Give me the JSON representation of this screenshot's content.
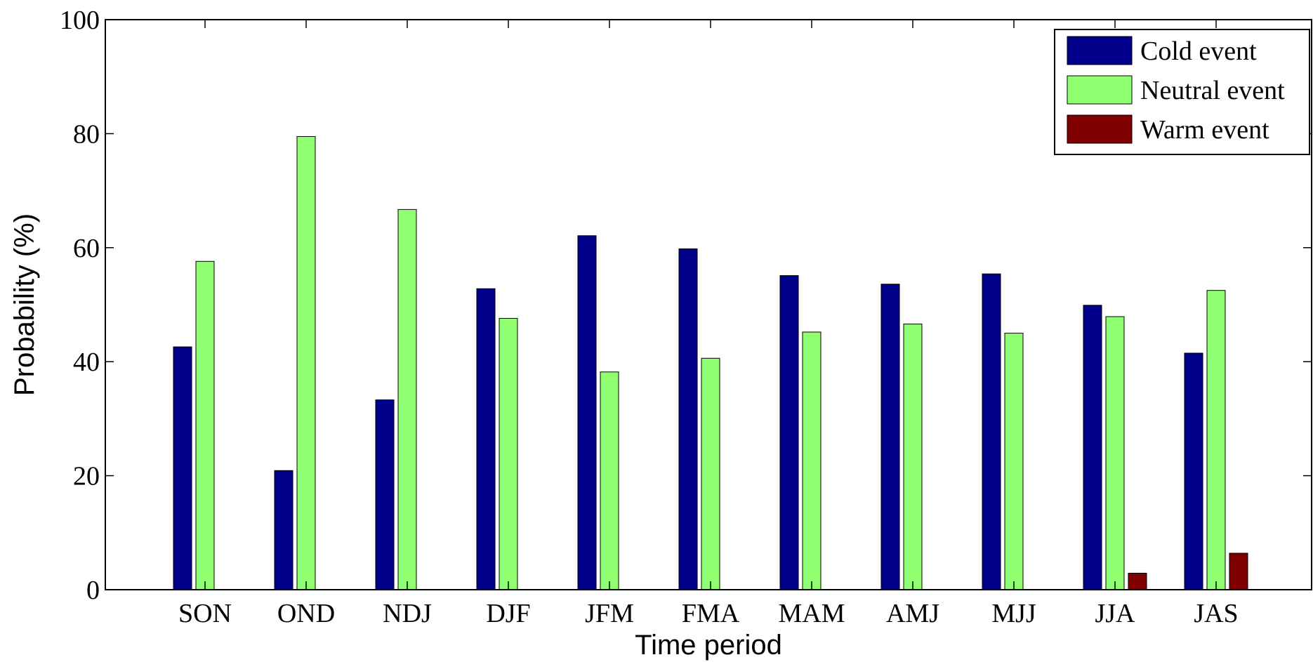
{
  "chart_data": {
    "type": "bar",
    "title": "",
    "xlabel": "Time period",
    "ylabel": "Probability (%)",
    "ylim": [
      0,
      100
    ],
    "yticks": [
      0,
      20,
      40,
      60,
      80,
      100
    ],
    "grid": false,
    "legend_position": "top-right",
    "categories": [
      "SON",
      "OND",
      "NDJ",
      "DJF",
      "JFM",
      "FMA",
      "MAM",
      "AMJ",
      "MJJ",
      "JJA",
      "JAS"
    ],
    "series": [
      {
        "name": "Cold event",
        "color": "#00008B",
        "values": [
          42.6,
          20.9,
          33.3,
          52.8,
          62.1,
          59.8,
          55.1,
          53.6,
          55.4,
          49.9,
          41.5
        ]
      },
      {
        "name": "Neutral event",
        "color": "#90FF70",
        "values": [
          57.6,
          79.5,
          66.7,
          47.6,
          38.2,
          40.6,
          45.2,
          46.6,
          45.0,
          47.9,
          52.5
        ]
      },
      {
        "name": "Warm event",
        "color": "#800000",
        "values": [
          0,
          0,
          0,
          0,
          0,
          0,
          0,
          0,
          0,
          2.9,
          6.4
        ]
      }
    ]
  }
}
